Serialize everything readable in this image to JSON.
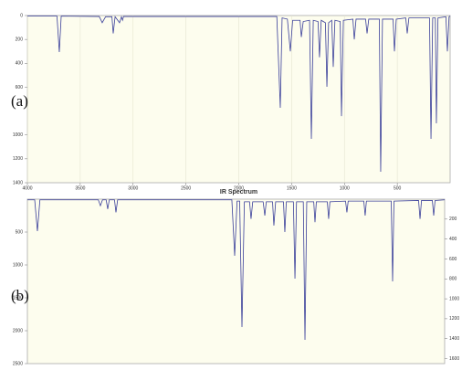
{
  "chart_data": [
    {
      "type": "line",
      "panel_label": "(a)",
      "title": "IR Spectrum",
      "x": [
        4000,
        3720,
        3698,
        3680,
        3320,
        3292,
        3260,
        3200,
        3188,
        3170,
        3128,
        3110,
        3100,
        3090,
        1640,
        1607,
        1590,
        1540,
        1512,
        1490,
        1420,
        1408,
        1390,
        1330,
        1313,
        1295,
        1250,
        1236,
        1220,
        1180,
        1166,
        1150,
        1120,
        1106,
        1090,
        1040,
        1028,
        1010,
        920,
        907,
        890,
        800,
        786,
        770,
        670,
        657,
        640,
        540,
        527,
        510,
        420,
        406,
        390,
        195,
        181,
        165,
        140,
        130,
        115,
        40,
        26,
        10,
        0
      ],
      "values": [
        5,
        5,
        306,
        5,
        8,
        60,
        10,
        10,
        150,
        10,
        60,
        10,
        40,
        8,
        8,
        773,
        20,
        30,
        300,
        40,
        40,
        180,
        50,
        40,
        1033,
        40,
        50,
        350,
        40,
        60,
        597,
        60,
        40,
        430,
        40,
        50,
        842,
        40,
        30,
        200,
        30,
        30,
        150,
        30,
        30,
        1308,
        30,
        30,
        300,
        30,
        20,
        150,
        20,
        20,
        1033,
        20,
        20,
        903,
        20,
        10,
        300,
        10,
        5
      ],
      "color": "#3a3f9a",
      "xlim": [
        4000,
        0
      ],
      "xticks": [
        4000,
        3500,
        3000,
        2500,
        2000,
        1500,
        1000,
        500
      ],
      "ylim": [
        0,
        1400
      ],
      "yticks": [
        0,
        200,
        400,
        600,
        1000,
        1200,
        1400
      ],
      "y_inverted": true,
      "grid": true
    },
    {
      "type": "line",
      "panel_label": "(b)",
      "x": [
        4000,
        3930,
        3904,
        3880,
        3320,
        3300,
        3280,
        3245,
        3230,
        3215,
        3165,
        3151,
        3135,
        2040,
        2013,
        1990,
        1965,
        1943,
        1920,
        1870,
        1856,
        1840,
        1740,
        1724,
        1710,
        1650,
        1637,
        1620,
        1545,
        1532,
        1518,
        1450,
        1435,
        1420,
        1355,
        1339,
        1322,
        1255,
        1243,
        1230,
        1125,
        1112,
        1100,
        950,
        937,
        925,
        775,
        762,
        750,
        512,
        499,
        486,
        250,
        236,
        222,
        118,
        105,
        92,
        0
      ],
      "values": [
        10,
        10,
        486,
        10,
        10,
        100,
        10,
        10,
        150,
        10,
        10,
        200,
        10,
        10,
        861,
        30,
        30,
        1944,
        40,
        40,
        300,
        40,
        40,
        250,
        40,
        40,
        400,
        40,
        40,
        500,
        40,
        40,
        1208,
        40,
        40,
        2139,
        40,
        40,
        350,
        40,
        40,
        300,
        40,
        30,
        200,
        30,
        30,
        250,
        30,
        30,
        1250,
        30,
        20,
        300,
        20,
        20,
        250,
        20,
        10
      ],
      "color": "#3a3f9a",
      "xlim": [
        4000,
        0
      ],
      "ylim": [
        0,
        2500
      ],
      "yticks": [
        500,
        1000,
        1500,
        2000,
        2500
      ],
      "y2lim": [
        0,
        1650
      ],
      "y2ticks": [
        200,
        400,
        600,
        800,
        1000,
        1200,
        1400,
        1600
      ],
      "y_inverted": true,
      "grid": true
    }
  ]
}
